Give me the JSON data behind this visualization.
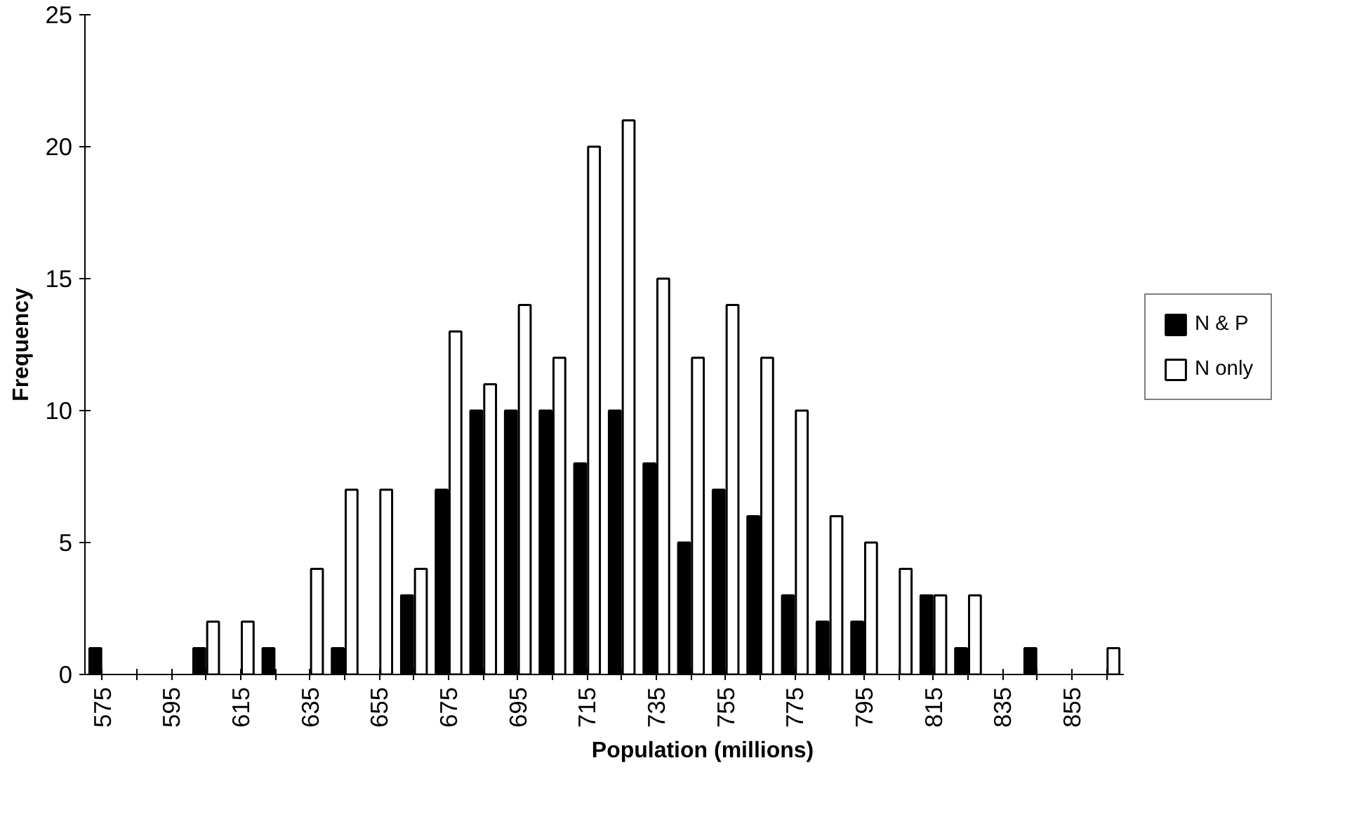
{
  "chart_data": {
    "type": "bar",
    "xlabel": "Population (millions)",
    "ylabel": "Frequency",
    "categories": [
      "575",
      null,
      "595",
      null,
      "615",
      null,
      "635",
      null,
      "655",
      null,
      "675",
      null,
      "695",
      null,
      "715",
      null,
      "735",
      null,
      "755",
      null,
      "775",
      null,
      "795",
      null,
      "815",
      null,
      "835",
      null,
      "855",
      null
    ],
    "series": [
      {
        "name": "N & P",
        "color": "#000000",
        "values": [
          1,
          0,
          0,
          1,
          0,
          1,
          0,
          1,
          0,
          3,
          7,
          10,
          10,
          10,
          8,
          10,
          8,
          5,
          7,
          6,
          3,
          2,
          2,
          0,
          3,
          1,
          0,
          1,
          0,
          0
        ]
      },
      {
        "name": "N only",
        "color": "#ffffff",
        "values": [
          0,
          0,
          0,
          2,
          2,
          0,
          4,
          7,
          7,
          4,
          13,
          11,
          14,
          12,
          20,
          21,
          15,
          12,
          14,
          12,
          10,
          6,
          5,
          4,
          3,
          3,
          0,
          0,
          0,
          1
        ]
      }
    ],
    "ylim": [
      0,
      25
    ],
    "yticks": [
      0,
      5,
      10,
      15,
      20,
      25
    ],
    "grid": false,
    "legend": "right"
  }
}
